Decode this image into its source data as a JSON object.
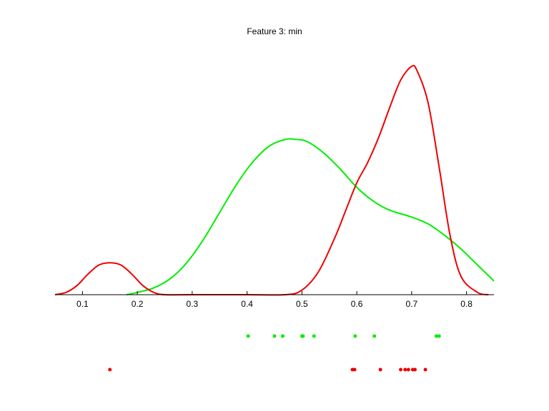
{
  "chart_data": {
    "type": "line",
    "title": "Feature 3: min",
    "xlabel": "",
    "ylabel": "",
    "xlim": [
      0.05,
      0.85
    ],
    "ylim": [
      0,
      1
    ],
    "x_ticks": [
      "0.1",
      "0.2",
      "0.3",
      "0.4",
      "0.5",
      "0.6",
      "0.7",
      "0.8"
    ],
    "x_tick_values": [
      0.1,
      0.2,
      0.3,
      0.4,
      0.5,
      0.6,
      0.7,
      0.8
    ],
    "grid": false,
    "legend": "none",
    "series": [
      {
        "color": "#00ee00",
        "x": [
          0.18,
          0.2,
          0.23,
          0.26,
          0.29,
          0.32,
          0.35,
          0.38,
          0.41,
          0.44,
          0.47,
          0.49,
          0.51,
          0.54,
          0.57,
          0.6,
          0.63,
          0.66,
          0.7,
          0.73,
          0.76,
          0.79,
          0.82,
          0.85
        ],
        "y": [
          0.0,
          0.01,
          0.03,
          0.07,
          0.14,
          0.24,
          0.36,
          0.48,
          0.58,
          0.65,
          0.68,
          0.68,
          0.67,
          0.62,
          0.55,
          0.47,
          0.41,
          0.37,
          0.34,
          0.31,
          0.26,
          0.2,
          0.13,
          0.06
        ]
      },
      {
        "color": "#ee0000",
        "x": [
          0.05,
          0.07,
          0.09,
          0.11,
          0.13,
          0.15,
          0.17,
          0.19,
          0.21,
          0.23,
          0.25,
          0.3,
          0.4,
          0.47,
          0.5,
          0.53,
          0.56,
          0.58,
          0.6,
          0.62,
          0.64,
          0.66,
          0.68,
          0.7,
          0.71,
          0.73,
          0.75,
          0.77,
          0.79,
          0.82,
          0.84
        ],
        "y": [
          0.0,
          0.01,
          0.04,
          0.09,
          0.13,
          0.14,
          0.13,
          0.09,
          0.04,
          0.01,
          0.0,
          0.0,
          0.0,
          0.0,
          0.02,
          0.1,
          0.25,
          0.37,
          0.49,
          0.58,
          0.69,
          0.82,
          0.94,
          1.0,
          0.98,
          0.84,
          0.56,
          0.26,
          0.08,
          0.01,
          0.0
        ]
      }
    ],
    "rug": [
      {
        "color": "#00ee00",
        "points": [
          0.402,
          0.45,
          0.465,
          0.5,
          0.502,
          0.522,
          0.597,
          0.632,
          0.745,
          0.75
        ]
      },
      {
        "color": "#ee0000",
        "points": [
          0.15,
          0.592,
          0.596,
          0.643,
          0.68,
          0.688,
          0.694,
          0.702,
          0.706,
          0.725
        ]
      }
    ]
  }
}
